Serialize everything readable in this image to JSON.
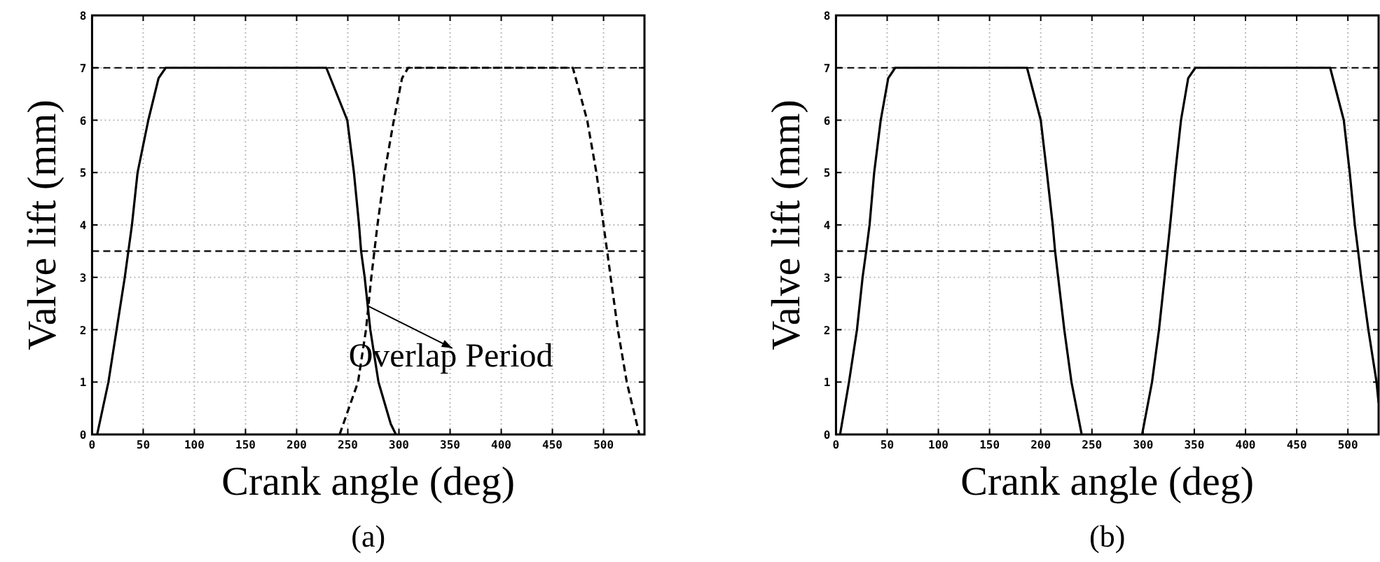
{
  "chart_data": [
    {
      "type": "line",
      "xlabel": "Crank angle (deg)",
      "ylabel": "Valve lift (mm)",
      "xlim": [
        0,
        540
      ],
      "ylim": [
        0,
        8
      ],
      "xticks": [
        0,
        50,
        100,
        150,
        200,
        250,
        300,
        350,
        400,
        450,
        500
      ],
      "yticks": [
        0,
        1,
        2,
        3,
        4,
        5,
        6,
        7,
        8
      ],
      "grid": true,
      "series": [
        {
          "color": "#000000",
          "line_style": "solid",
          "x": [
            5,
            16,
            24,
            32,
            35.5,
            39,
            44.5,
            55,
            65,
            72,
            229,
            249.5,
            256,
            261,
            263,
            266.5,
            272,
            280,
            292,
            297
          ],
          "values": [
            0,
            1,
            2,
            3,
            3.5,
            4,
            5,
            6,
            6.8,
            7,
            7,
            6,
            5,
            4,
            3.5,
            3,
            2,
            1,
            0.2,
            0
          ]
        },
        {
          "color": "#000000",
          "line_style": "dashed",
          "x": [
            242,
            260,
            267.8,
            273,
            276,
            279,
            286,
            295,
            303,
            309,
            470,
            484,
            493,
            500,
            503.5,
            507,
            514,
            522.7,
            535
          ],
          "values": [
            0,
            1,
            2,
            3,
            3.5,
            4,
            5,
            6,
            6.8,
            7,
            7,
            6,
            5,
            4,
            3.5,
            3,
            2,
            1,
            0
          ]
        }
      ],
      "ref_lines": [
        {
          "axis": "y",
          "value": 7,
          "line_style": "dashed"
        },
        {
          "axis": "y",
          "value": 3.5,
          "line_style": "dashed"
        }
      ],
      "annotations": [
        {
          "text": "Overlap Period",
          "x": 270,
          "y": 2.45
        },
        "(a)"
      ]
    },
    {
      "type": "line",
      "xlabel": "Crank angle (deg)",
      "ylabel": "Valve lift (mm)",
      "xlim": [
        0,
        530
      ],
      "ylim": [
        0,
        8
      ],
      "xticks": [
        0,
        50,
        100,
        150,
        200,
        250,
        300,
        350,
        400,
        450,
        500
      ],
      "yticks": [
        0,
        1,
        2,
        3,
        4,
        5,
        6,
        7,
        8
      ],
      "grid": true,
      "series": [
        {
          "color": "#000000",
          "line_style": "solid",
          "x": [
            4,
            12.7,
            20.5,
            26,
            29.5,
            32.8,
            37.3,
            43.7,
            51,
            57.8,
            186.6,
            200,
            206,
            211.7,
            214,
            217,
            223,
            230,
            240
          ],
          "values": [
            0,
            1,
            2,
            3,
            3.5,
            4,
            5,
            6,
            6.8,
            7,
            7,
            6,
            5,
            4,
            3.5,
            3,
            2,
            1,
            0
          ]
        },
        {
          "color": "#000000",
          "line_style": "solid",
          "x": [
            299,
            308.7,
            315.5,
            321,
            323.7,
            326.4,
            331.4,
            337,
            344,
            351,
            482.7,
            496,
            501.8,
            506.8,
            510,
            513,
            520,
            528,
            530
          ],
          "values": [
            0,
            1,
            2,
            3,
            3.5,
            4,
            5,
            6,
            6.8,
            7,
            7,
            6,
            5,
            4,
            3.5,
            3,
            2,
            1,
            0.6
          ]
        }
      ],
      "ref_lines": [
        {
          "axis": "y",
          "value": 7,
          "line_style": "dashed"
        },
        {
          "axis": "y",
          "value": 3.5,
          "line_style": "dashed"
        }
      ],
      "annotations": [
        "(b)"
      ]
    }
  ]
}
